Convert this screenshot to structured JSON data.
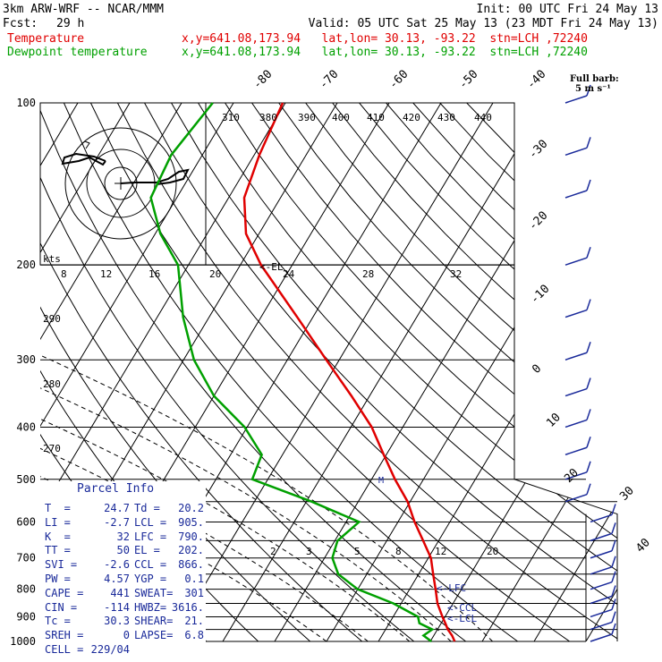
{
  "header": {
    "model": "3km ARW-WRF -- NCAR/MMM",
    "init": "Init: 00 UTC Fri 24 May 13",
    "fcst_label": "Fcst:",
    "fcst_hours": "29 h",
    "valid": "Valid: 05 UTC Sat 25 May 13 (23 MDT Fri 24 May 13)",
    "temp_label": "Temperature",
    "dew_label": "Dewpoint temperature",
    "temp_loc": "x,y=641.08,173.94   lat,lon= 30.13, -93.22  stn=LCH ,72240",
    "dew_loc": "x,y=641.08,173.94   lat,lon= 30.13, -93.22  stn=LCH ,72240",
    "temp_color": "#e00000",
    "dew_color": "#00a000"
  },
  "wind_legend": {
    "title": "Full barb:",
    "value": "5 m s⁻¹"
  },
  "parcel_info": {
    "title": "Parcel Info",
    "rows": [
      [
        "T  =",
        "24.7",
        "Td =",
        "20.2"
      ],
      [
        "LI =",
        "-2.7",
        "LCL =",
        "905."
      ],
      [
        "K  =",
        "32",
        "LFC =",
        "790."
      ],
      [
        "TT =",
        "50",
        "EL =",
        "202."
      ],
      [
        "SVI =",
        "-2.6",
        "CCL =",
        "866."
      ],
      [
        "PW =",
        "4.57",
        "YGP =",
        "0.1"
      ],
      [
        "CAPE =",
        "441",
        "SWEAT=",
        "301"
      ],
      [
        "CIN =",
        "-114",
        "HWBZ=",
        "3616."
      ],
      [
        "Tc =",
        "30.3",
        "SHEAR=",
        "21."
      ],
      [
        "SREH =",
        "0",
        "LAPSE=",
        "6.8"
      ],
      [
        "CELL =",
        "229/04",
        "",
        ""
      ]
    ]
  },
  "chart_data": {
    "type": "skew-t log-p sounding",
    "pressure_levels": [
      100,
      200,
      300,
      400,
      500,
      600,
      700,
      800,
      900,
      1000
    ],
    "pressure_tick_labels": [
      "100",
      "200",
      "300",
      "400",
      "500",
      "600",
      "700",
      "800",
      "900",
      "1000"
    ],
    "isotherm_labels": [
      "-80",
      "-70",
      "-60",
      "-50",
      "-40",
      "-30",
      "-20",
      "-10",
      "0",
      "10",
      "20",
      "30",
      "40"
    ],
    "theta_labels": [
      "310",
      "380",
      "390",
      "400",
      "410",
      "420",
      "430",
      "440",
      "290",
      "280",
      "270"
    ],
    "mixing_ratio_labels": [
      "2",
      "3",
      "5",
      "8",
      "12",
      "20"
    ],
    "hodograph_speed_labels": [
      "8",
      "12",
      "16",
      "20",
      "24",
      "28",
      "32"
    ],
    "hodograph_unit": "kts",
    "markers": {
      "el": "<-EL",
      "lfc": "<-LFC",
      "ccl": "<-CCL",
      "lcl": "<-LCL",
      "m": "M"
    },
    "temperature": {
      "name": "Temperature",
      "p": [
        1000,
        975,
        950,
        925,
        900,
        850,
        800,
        750,
        700,
        650,
        600,
        550,
        500,
        450,
        400,
        350,
        300,
        250,
        200,
        175,
        150,
        125,
        100
      ],
      "t_c": [
        24.7,
        23.5,
        22.0,
        20.8,
        19.5,
        17.0,
        15.0,
        12.8,
        10.5,
        7.0,
        3.2,
        -0.5,
        -5.5,
        -10.5,
        -16.0,
        -23.5,
        -32.5,
        -43.0,
        -56.0,
        -62.5,
        -67.0,
        -69.0,
        -70.5
      ]
    },
    "dewpoint": {
      "name": "Dewpoint temperature",
      "p": [
        1000,
        975,
        950,
        925,
        900,
        850,
        800,
        750,
        700,
        650,
        600,
        550,
        500,
        450,
        400,
        350,
        300,
        250,
        200,
        175,
        150,
        125,
        100
      ],
      "td_c": [
        20.2,
        18.0,
        19.0,
        15.8,
        14.8,
        8.5,
        0.0,
        -5.5,
        -8.5,
        -9.5,
        -7.5,
        -19.0,
        -33.0,
        -34.0,
        -40.5,
        -50.0,
        -58.0,
        -65.0,
        -72.0,
        -79.0,
        -85.0,
        -86.0,
        -84.0
      ]
    },
    "wind": {
      "p": [
        1000,
        950,
        900,
        850,
        800,
        750,
        700,
        650,
        600,
        550,
        500,
        450,
        400,
        350,
        300,
        250,
        200,
        150,
        125,
        100
      ],
      "speed_ms": [
        10,
        12,
        15,
        15,
        12,
        10,
        10,
        10,
        10,
        10,
        10,
        10,
        10,
        10,
        10,
        10,
        10,
        10,
        10,
        10
      ]
    },
    "xlim_c": [
      -40,
      50
    ],
    "ylim_hpa": [
      1000,
      100
    ]
  }
}
